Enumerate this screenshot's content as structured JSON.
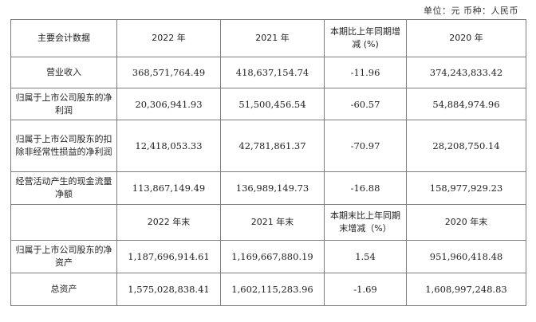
{
  "unit_note": "单位：元  币种：人民币",
  "header1": {
    "col0": "主要会计数据",
    "col1": "2022 年",
    "col2": "2021 年",
    "col3": "本期比上年同期增减 (%)",
    "col4": "2020 年"
  },
  "rows1": [
    {
      "label": "营业收入",
      "v2022": "368,571,764.49",
      "v2021": "418,637,154.74",
      "chg": "-11.96",
      "v2020": "374,243,833.42"
    },
    {
      "label": "归属于上市公司股东的净利润",
      "v2022": "20,306,941.93",
      "v2021": "51,500,456.54",
      "chg": "-60.57",
      "v2020": "54,884,974.96"
    },
    {
      "label": "归属于上市公司股东的扣除非经常性损益的净利润",
      "v2022": "12,418,053.33",
      "v2021": "42,781,861.37",
      "chg": "-70.97",
      "v2020": "28,208,750.14"
    },
    {
      "label": "经营活动产生的现金流量净额",
      "v2022": "113,867,149.49",
      "v2021": "136,989,149.73",
      "chg": "-16.88",
      "v2020": "158,977,929.23"
    }
  ],
  "header2": {
    "col0": "",
    "col1": "2022 年末",
    "col2": "2021 年末",
    "col3": "本期末比上年同期末增减（%）",
    "col4": "2020 年末"
  },
  "rows2": [
    {
      "label": "归属于上市公司股东的净资产",
      "v2022": "1,187,696,914.61",
      "v2021": "1,169,667,880.19",
      "chg": "1.54",
      "v2020": "951,960,418.48"
    },
    {
      "label": "总资产",
      "v2022": "1,575,028,838.41",
      "v2021": "1,602,115,283.96",
      "chg": "-1.69",
      "v2020": "1,608,997,248.83"
    }
  ]
}
